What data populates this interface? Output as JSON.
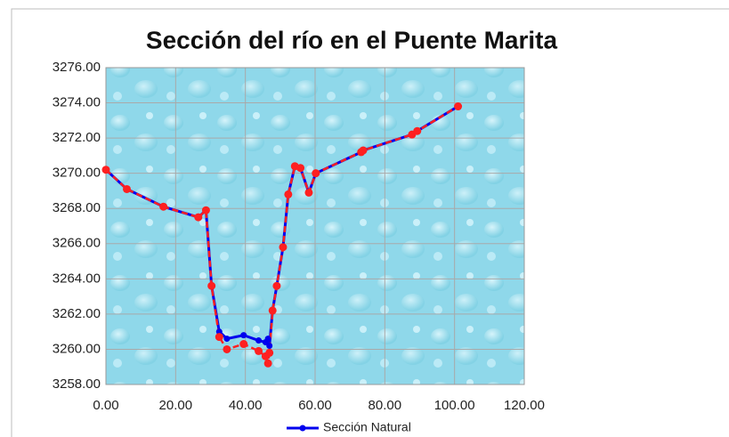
{
  "chart_data": {
    "type": "line",
    "title": "Sección del río en el Puente Marita",
    "xlim": [
      0,
      120
    ],
    "xticks": [
      {
        "value": 0,
        "label": "0.00"
      },
      {
        "value": 20,
        "label": "20.00"
      },
      {
        "value": 40,
        "label": "40.00"
      },
      {
        "value": 60,
        "label": "60.00"
      },
      {
        "value": 80,
        "label": "80.00"
      },
      {
        "value": 100,
        "label": "100.00"
      },
      {
        "value": 120,
        "label": "120.00"
      }
    ],
    "ylim": [
      3258,
      3276
    ],
    "yticks": [
      {
        "value": 3258,
        "label": "3258.00"
      },
      {
        "value": 3260,
        "label": "3260.00"
      },
      {
        "value": 3262,
        "label": "3262.00"
      },
      {
        "value": 3264,
        "label": "3264.00"
      },
      {
        "value": 3266,
        "label": "3266.00"
      },
      {
        "value": 3268,
        "label": "3268.00"
      },
      {
        "value": 3270,
        "label": "3270.00"
      },
      {
        "value": 3272,
        "label": "3272.00"
      },
      {
        "value": 3274,
        "label": "3274.00"
      },
      {
        "value": 3276,
        "label": "3276.00"
      }
    ],
    "grid": true,
    "legend": "bottom",
    "series": [
      {
        "name": "Sección Natural",
        "color": "#0000ee",
        "x": [
          0,
          6,
          16.5,
          26.5,
          28.7,
          30.3,
          32.5,
          34.7,
          39.5,
          43.8,
          45.8,
          46.5,
          46.9,
          47.8,
          49,
          50.8,
          52.3,
          54.2,
          55.8,
          58.2,
          60.2,
          73.2,
          73.8,
          87.8,
          89.3,
          101
        ],
        "values": [
          3270.2,
          3269.1,
          3268.1,
          3267.5,
          3267.9,
          3263.6,
          3261.0,
          3260.6,
          3260.8,
          3260.5,
          3260.4,
          3260.6,
          3260.2,
          3262.2,
          3263.6,
          3265.8,
          3268.8,
          3270.4,
          3270.3,
          3268.9,
          3270.0,
          3271.2,
          3271.3,
          3272.2,
          3272.4,
          3273.8
        ]
      },
      {
        "color": "#ff2020",
        "x": [
          0,
          6,
          16.5,
          26.5,
          28.7,
          30.3,
          32.5,
          34.7,
          39.5,
          43.8,
          45.8,
          46.5,
          46.9,
          47.8,
          49,
          50.8,
          52.3,
          54.2,
          55.8,
          58.2,
          60.2,
          73.2,
          73.8,
          87.8,
          89.3,
          101
        ],
        "values": [
          3270.2,
          3269.1,
          3268.1,
          3267.5,
          3267.9,
          3263.6,
          3260.7,
          3260.0,
          3260.3,
          3259.9,
          3259.6,
          3259.2,
          3259.8,
          3262.2,
          3263.6,
          3265.8,
          3268.8,
          3270.4,
          3270.3,
          3268.9,
          3270.0,
          3271.2,
          3271.3,
          3272.2,
          3272.4,
          3273.8
        ]
      }
    ]
  }
}
